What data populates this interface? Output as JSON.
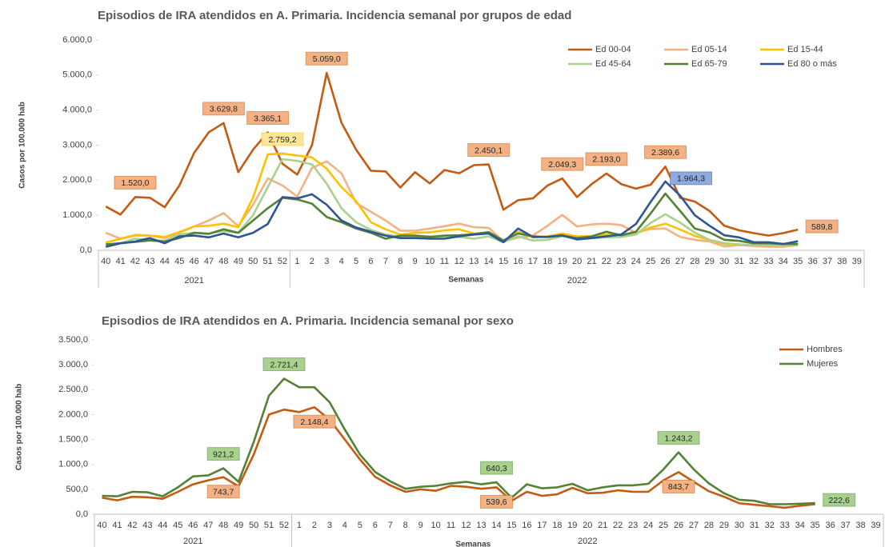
{
  "chart_data": [
    {
      "type": "line",
      "title": "Episodios de IRA atendidos en A. Primaria. Incidencia semanal por grupos de edad",
      "y_label": "Casos por 100.000 hab",
      "x_label": "Semanas",
      "years": [
        "2021",
        "2022"
      ],
      "categories": [
        "40",
        "41",
        "42",
        "43",
        "44",
        "45",
        "46",
        "47",
        "48",
        "49",
        "50",
        "51",
        "52",
        "1",
        "2",
        "3",
        "4",
        "5",
        "6",
        "7",
        "8",
        "9",
        "10",
        "11",
        "12",
        "13",
        "14",
        "15",
        "16",
        "17",
        "18",
        "19",
        "20",
        "21",
        "22",
        "23",
        "24",
        "25",
        "26",
        "27",
        "28",
        "29",
        "30",
        "31",
        "32",
        "33",
        "34",
        "35",
        "36",
        "37",
        "38",
        "39"
      ],
      "ylim": [
        0,
        6000
      ],
      "yticks": [
        {
          "value": 0,
          "label": "0,0"
        },
        {
          "value": 1000,
          "label": "1.000,0"
        },
        {
          "value": 2000,
          "label": "2.000,0"
        },
        {
          "value": 3000,
          "label": "3.000,0"
        },
        {
          "value": 4000,
          "label": "4.000,0"
        },
        {
          "value": 5000,
          "label": "5.000,0"
        },
        {
          "value": 6000,
          "label": "6.000,0"
        }
      ],
      "grid": false,
      "legend": "upper right",
      "series": [
        {
          "name": "Ed 00-04",
          "color": "#C55A11",
          "label_color": "#F4B183",
          "values": [
            1250,
            1020,
            1520.0,
            1500,
            1230,
            1850,
            2780,
            3370,
            3629.8,
            2230,
            2870,
            3365.1,
            2470,
            2160,
            3000,
            5059.0,
            3640,
            2870,
            2270,
            2250,
            1790,
            2230,
            1910,
            2290,
            2200,
            2430,
            2450.1,
            1160,
            1430,
            1480,
            1850,
            2049.3,
            1520,
            1890,
            2193.0,
            1890,
            1760,
            1870,
            2389.6,
            1500,
            1390,
            1120,
            700,
            570,
            490,
            420,
            490,
            589.8,
            null,
            null,
            null,
            null
          ],
          "value_labels": [
            null,
            null,
            "1.520,0",
            null,
            null,
            null,
            null,
            null,
            "3.629,8",
            null,
            null,
            "3.365,1",
            null,
            null,
            null,
            "5.059,0",
            null,
            null,
            null,
            null,
            null,
            null,
            null,
            null,
            null,
            null,
            "2.450,1",
            null,
            null,
            null,
            null,
            "2.049,3",
            null,
            null,
            "2.193,0",
            null,
            null,
            null,
            "2.389,6",
            null,
            null,
            null,
            null,
            null,
            null,
            null,
            null,
            "589,8",
            null,
            null,
            null,
            null
          ]
        },
        {
          "name": "Ed 05-14",
          "color": "#F4B183",
          "values": [
            500,
            330,
            420,
            420,
            350,
            500,
            680,
            850,
            1060,
            690,
            1300,
            2050,
            1850,
            1530,
            2350,
            2540,
            2200,
            1350,
            1100,
            850,
            560,
            560,
            620,
            690,
            760,
            660,
            640,
            260,
            360,
            420,
            700,
            1010,
            680,
            740,
            760,
            720,
            500,
            610,
            620,
            380,
            300,
            250,
            110,
            150,
            120,
            100,
            100,
            150,
            null,
            null,
            null,
            null
          ]
        },
        {
          "name": "Ed 15-44",
          "color": "#FFC000",
          "label_color": "#FFE699",
          "values": [
            220,
            330,
            440,
            420,
            380,
            520,
            680,
            700,
            760,
            660,
            1500,
            2740,
            2759.2,
            2700,
            2650,
            2330,
            1800,
            1400,
            800,
            600,
            450,
            500,
            510,
            570,
            600,
            480,
            500,
            270,
            530,
            370,
            400,
            480,
            400,
            400,
            450,
            430,
            480,
            650,
            760,
            590,
            410,
            290,
            180,
            160,
            150,
            140,
            130,
            170,
            null,
            null,
            null,
            null
          ],
          "value_labels": [
            null,
            null,
            null,
            null,
            null,
            null,
            null,
            null,
            null,
            null,
            null,
            null,
            "2.759,2",
            null,
            null,
            null,
            null,
            null,
            null,
            null,
            null,
            null,
            null,
            null,
            null,
            null,
            null,
            null,
            null,
            null,
            null,
            null,
            null,
            null,
            null,
            null,
            null,
            null,
            null,
            null,
            null,
            null,
            null,
            null,
            null,
            null,
            null,
            null,
            null,
            null,
            null,
            null
          ]
        },
        {
          "name": "Ed 45-64",
          "color": "#A9D18E",
          "values": [
            150,
            200,
            330,
            300,
            270,
            450,
            500,
            480,
            550,
            500,
            1000,
            1800,
            2600,
            2550,
            2450,
            1900,
            1200,
            800,
            580,
            450,
            400,
            400,
            400,
            380,
            380,
            330,
            400,
            230,
            400,
            280,
            300,
            400,
            330,
            350,
            370,
            380,
            450,
            780,
            1030,
            790,
            500,
            300,
            200,
            170,
            150,
            150,
            140,
            150,
            null,
            null,
            null,
            null
          ]
        },
        {
          "name": "Ed 65-79",
          "color": "#548235",
          "values": [
            170,
            200,
            240,
            280,
            250,
            350,
            500,
            470,
            600,
            500,
            850,
            1200,
            1500,
            1450,
            1330,
            950,
            800,
            620,
            500,
            330,
            420,
            420,
            380,
            420,
            430,
            460,
            520,
            280,
            480,
            400,
            380,
            420,
            350,
            400,
            530,
            430,
            530,
            1050,
            1620,
            1120,
            620,
            510,
            300,
            270,
            200,
            200,
            180,
            180,
            null,
            null,
            null,
            null
          ]
        },
        {
          "name": "Ed 80 o más",
          "color": "#2F5597",
          "label_color": "#8FAADC",
          "values": [
            100,
            200,
            250,
            350,
            200,
            400,
            420,
            370,
            480,
            370,
            500,
            750,
            1520,
            1480,
            1600,
            1300,
            850,
            650,
            530,
            420,
            350,
            350,
            330,
            330,
            400,
            450,
            480,
            230,
            620,
            380,
            380,
            430,
            310,
            350,
            400,
            450,
            750,
            1380,
            1964.3,
            1560,
            1000,
            700,
            430,
            370,
            230,
            230,
            180,
            260,
            null,
            null,
            null,
            null
          ],
          "value_labels": [
            null,
            null,
            null,
            null,
            null,
            null,
            null,
            null,
            null,
            null,
            null,
            null,
            null,
            null,
            null,
            null,
            null,
            null,
            null,
            null,
            null,
            null,
            null,
            null,
            null,
            null,
            null,
            null,
            null,
            null,
            null,
            null,
            null,
            null,
            null,
            null,
            null,
            null,
            "1.964,3",
            null,
            null,
            null,
            null,
            null,
            null,
            null,
            null,
            null,
            null,
            null,
            null,
            null
          ]
        }
      ]
    },
    {
      "type": "line",
      "title": "Episodios  de IRA atendidos  en A. Primaria.  Incidencia semanal por sexo",
      "y_label": "Casos por 100.000 hab",
      "x_label": "Semanas",
      "years": [
        "2021",
        "2022"
      ],
      "categories": [
        "40",
        "41",
        "42",
        "43",
        "44",
        "45",
        "46",
        "47",
        "48",
        "49",
        "50",
        "51",
        "52",
        "1",
        "2",
        "3",
        "4",
        "5",
        "6",
        "7",
        "8",
        "9",
        "10",
        "11",
        "12",
        "13",
        "14",
        "15",
        "16",
        "17",
        "18",
        "19",
        "20",
        "21",
        "22",
        "23",
        "24",
        "25",
        "26",
        "27",
        "28",
        "29",
        "30",
        "31",
        "32",
        "33",
        "34",
        "35",
        "36",
        "37",
        "38",
        "39"
      ],
      "ylim": [
        0,
        3500
      ],
      "yticks": [
        {
          "value": 0,
          "label": "0,0"
        },
        {
          "value": 500,
          "label": "500,0"
        },
        {
          "value": 1000,
          "label": "1.000,0"
        },
        {
          "value": 1500,
          "label": "1.500,0"
        },
        {
          "value": 2000,
          "label": "2.000,0"
        },
        {
          "value": 2500,
          "label": "2.500,0"
        },
        {
          "value": 3000,
          "label": "3.000,0"
        },
        {
          "value": 3500,
          "label": "3.500,0"
        }
      ],
      "grid": false,
      "legend": "upper right",
      "series": [
        {
          "name": "Hombres",
          "color": "#C55A11",
          "label_color": "#F4B183",
          "values": [
            330,
            280,
            350,
            340,
            310,
            450,
            600,
            680,
            743.7,
            560,
            1200,
            2000,
            2100,
            2050,
            2148.4,
            1900,
            1500,
            1100,
            750,
            580,
            450,
            500,
            470,
            570,
            550,
            510,
            539.6,
            270,
            450,
            370,
            400,
            530,
            420,
            430,
            480,
            450,
            450,
            680,
            843.7,
            650,
            460,
            350,
            220,
            190,
            160,
            130,
            170,
            200,
            null,
            null,
            null,
            null
          ],
          "value_labels": [
            null,
            null,
            null,
            null,
            null,
            null,
            null,
            null,
            "743,7",
            null,
            null,
            null,
            null,
            null,
            "2.148,4",
            null,
            null,
            null,
            null,
            null,
            null,
            null,
            null,
            null,
            null,
            null,
            "539,6",
            null,
            null,
            null,
            null,
            null,
            null,
            null,
            null,
            null,
            null,
            null,
            "843,7",
            null,
            null,
            null,
            null,
            null,
            null,
            null,
            null,
            null,
            null,
            null,
            null,
            null
          ]
        },
        {
          "name": "Mujeres",
          "color": "#548235",
          "label_color": "#A9D18E",
          "values": [
            370,
            360,
            450,
            440,
            360,
            540,
            760,
            780,
            921.2,
            650,
            1450,
            2380,
            2721.4,
            2550,
            2550,
            2250,
            1700,
            1200,
            850,
            660,
            510,
            550,
            570,
            620,
            650,
            600,
            640.3,
            330,
            600,
            520,
            540,
            610,
            480,
            540,
            580,
            580,
            610,
            900,
            1243.2,
            900,
            620,
            420,
            290,
            270,
            200,
            200,
            210,
            222.6,
            null,
            null,
            null,
            null
          ],
          "value_labels": [
            null,
            null,
            null,
            null,
            null,
            null,
            null,
            null,
            "921,2",
            null,
            null,
            null,
            "2.721,4",
            null,
            null,
            null,
            null,
            null,
            null,
            null,
            null,
            null,
            null,
            null,
            null,
            null,
            "640,3",
            null,
            null,
            null,
            null,
            null,
            null,
            null,
            null,
            null,
            null,
            null,
            "1.243,2",
            null,
            null,
            null,
            null,
            null,
            null,
            null,
            null,
            "222,6",
            null,
            null,
            null,
            null
          ]
        }
      ]
    }
  ]
}
